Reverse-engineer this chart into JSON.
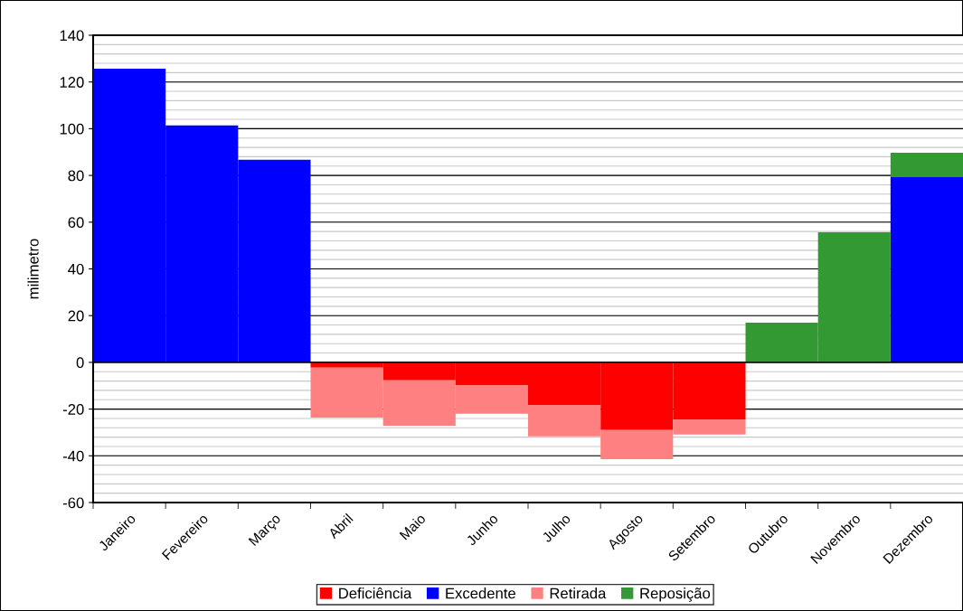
{
  "chart_data": {
    "type": "bar",
    "stacked": true,
    "ylabel": "milimetro",
    "categories": [
      "Janeiro",
      "Fevereiro",
      "Março",
      "Abril",
      "Maio",
      "Junho",
      "Julho",
      "Agosto",
      "Setembro",
      "Outubro",
      "Novembro",
      "Dezembro"
    ],
    "series": [
      {
        "name": "Deficiência",
        "color": "#ff0000",
        "values": [
          null,
          null,
          null,
          -2.3,
          -7.7,
          -9.7,
          -18.2,
          -29.0,
          -24.4,
          null,
          null,
          null
        ]
      },
      {
        "name": "Excedente",
        "color": "#0000ff",
        "values": [
          125.7,
          101.4,
          86.7,
          null,
          null,
          null,
          null,
          null,
          null,
          null,
          null,
          79.3
        ]
      },
      {
        "name": "Retirada",
        "color": "#ff8080",
        "values": [
          null,
          null,
          null,
          -21.3,
          -19.4,
          -12.3,
          -13.5,
          -12.4,
          -6.5,
          null,
          null,
          null
        ]
      },
      {
        "name": "Reposição",
        "color": "#339933",
        "values": [
          null,
          null,
          null,
          null,
          null,
          null,
          null,
          null,
          null,
          17.0,
          55.7,
          10.4
        ]
      }
    ],
    "ylim": [
      -60,
      140
    ],
    "yticks": [
      -60,
      -40,
      -20,
      0,
      20,
      40,
      60,
      80,
      100,
      120,
      140
    ],
    "grid": "y",
    "legend": "bottom"
  }
}
